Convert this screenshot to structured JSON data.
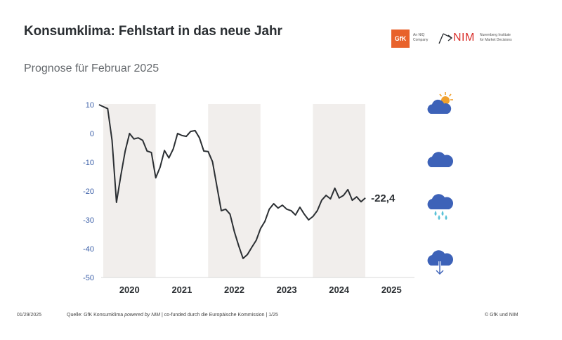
{
  "header": {
    "title": "Konsumklima: Fehlstart in das neue Jahr",
    "subtitle": "Prognose für Februar 2025"
  },
  "logos": {
    "gfk": {
      "mark": "GfK",
      "caption_line1": "An NIQ",
      "caption_line2": "Company",
      "color": "#e8622b"
    },
    "nim": {
      "mark": "NIM",
      "caption_line1": "Nuremberg Institute",
      "caption_line2": "for Market Decisions",
      "color": "#d9302c"
    }
  },
  "weather_icons": [
    {
      "name": "sun-cloud-icon"
    },
    {
      "name": "cloud-icon"
    },
    {
      "name": "rain-cloud-icon"
    },
    {
      "name": "cloud-down-arrow-icon"
    }
  ],
  "footer": {
    "date": "01/29/2025",
    "source_prefix": "Quelle: GfK Konsumklima ",
    "source_italic": "powered by NIM",
    "source_suffix": " | co-funded durch die Europäische Kommission | 1/25",
    "copyright": "© GfK und NIM"
  },
  "chart_data": {
    "type": "line",
    "title": "Konsumklima: Fehlstart in das neue Jahr",
    "subtitle": "Prognose für Februar 2025",
    "xlabel": "",
    "ylabel": "",
    "ylim": [
      -50,
      10
    ],
    "yticks": [
      10,
      0,
      -10,
      -20,
      -30,
      -40,
      -50
    ],
    "ytick_labels": [
      "10",
      "0",
      "-10",
      "-20",
      "-30",
      "-40",
      "-50"
    ],
    "xtick_labels": [
      "2020",
      "2021",
      "2022",
      "2023",
      "2024",
      "2025"
    ],
    "shaded_years": [
      "2020",
      "2022",
      "2024"
    ],
    "grid": false,
    "line_color": "#2b2f33",
    "shade_color": "#f1eeec",
    "axis_label_color": "#3b5fa8",
    "last_value_label": "-22,4",
    "series": [
      {
        "name": "Konsumklima",
        "x": [
          "2019-12",
          "2020-01",
          "2020-02",
          "2020-03",
          "2020-04",
          "2020-05",
          "2020-06",
          "2020-07",
          "2020-08",
          "2020-09",
          "2020-10",
          "2020-11",
          "2020-12",
          "2021-01",
          "2021-02",
          "2021-03",
          "2021-04",
          "2021-05",
          "2021-06",
          "2021-07",
          "2021-08",
          "2021-09",
          "2021-10",
          "2021-11",
          "2021-12",
          "2022-01",
          "2022-02",
          "2022-03",
          "2022-04",
          "2022-05",
          "2022-06",
          "2022-07",
          "2022-08",
          "2022-09",
          "2022-10",
          "2022-11",
          "2022-12",
          "2023-01",
          "2023-02",
          "2023-03",
          "2023-04",
          "2023-05",
          "2023-06",
          "2023-07",
          "2023-08",
          "2023-09",
          "2023-10",
          "2023-11",
          "2023-12",
          "2024-01",
          "2024-02",
          "2024-03",
          "2024-04",
          "2024-05",
          "2024-06",
          "2024-07",
          "2024-08",
          "2024-09",
          "2024-10",
          "2024-11",
          "2024-12",
          "2025-01"
        ],
        "values": [
          10.0,
          9.3,
          8.6,
          -2.4,
          -23.9,
          -14.6,
          -6.1,
          0.0,
          -1.9,
          -1.5,
          -2.4,
          -6.1,
          -6.6,
          -15.4,
          -11.7,
          -5.9,
          -8.5,
          -5.4,
          0.0,
          -0.7,
          -1.0,
          0.7,
          1.0,
          -1.5,
          -6.1,
          -6.3,
          -9.8,
          -18.3,
          -26.8,
          -26.3,
          -28.0,
          -34.1,
          -39.0,
          -43.4,
          -42.0,
          -39.5,
          -37.1,
          -33.0,
          -30.5,
          -26.3,
          -24.4,
          -25.9,
          -24.9,
          -26.3,
          -26.8,
          -28.3,
          -25.6,
          -28.0,
          -30.0,
          -28.8,
          -26.8,
          -23.2,
          -21.5,
          -22.7,
          -19.0,
          -22.4,
          -21.5,
          -19.5,
          -23.2,
          -22.0,
          -23.7,
          -22.4
        ]
      }
    ]
  }
}
